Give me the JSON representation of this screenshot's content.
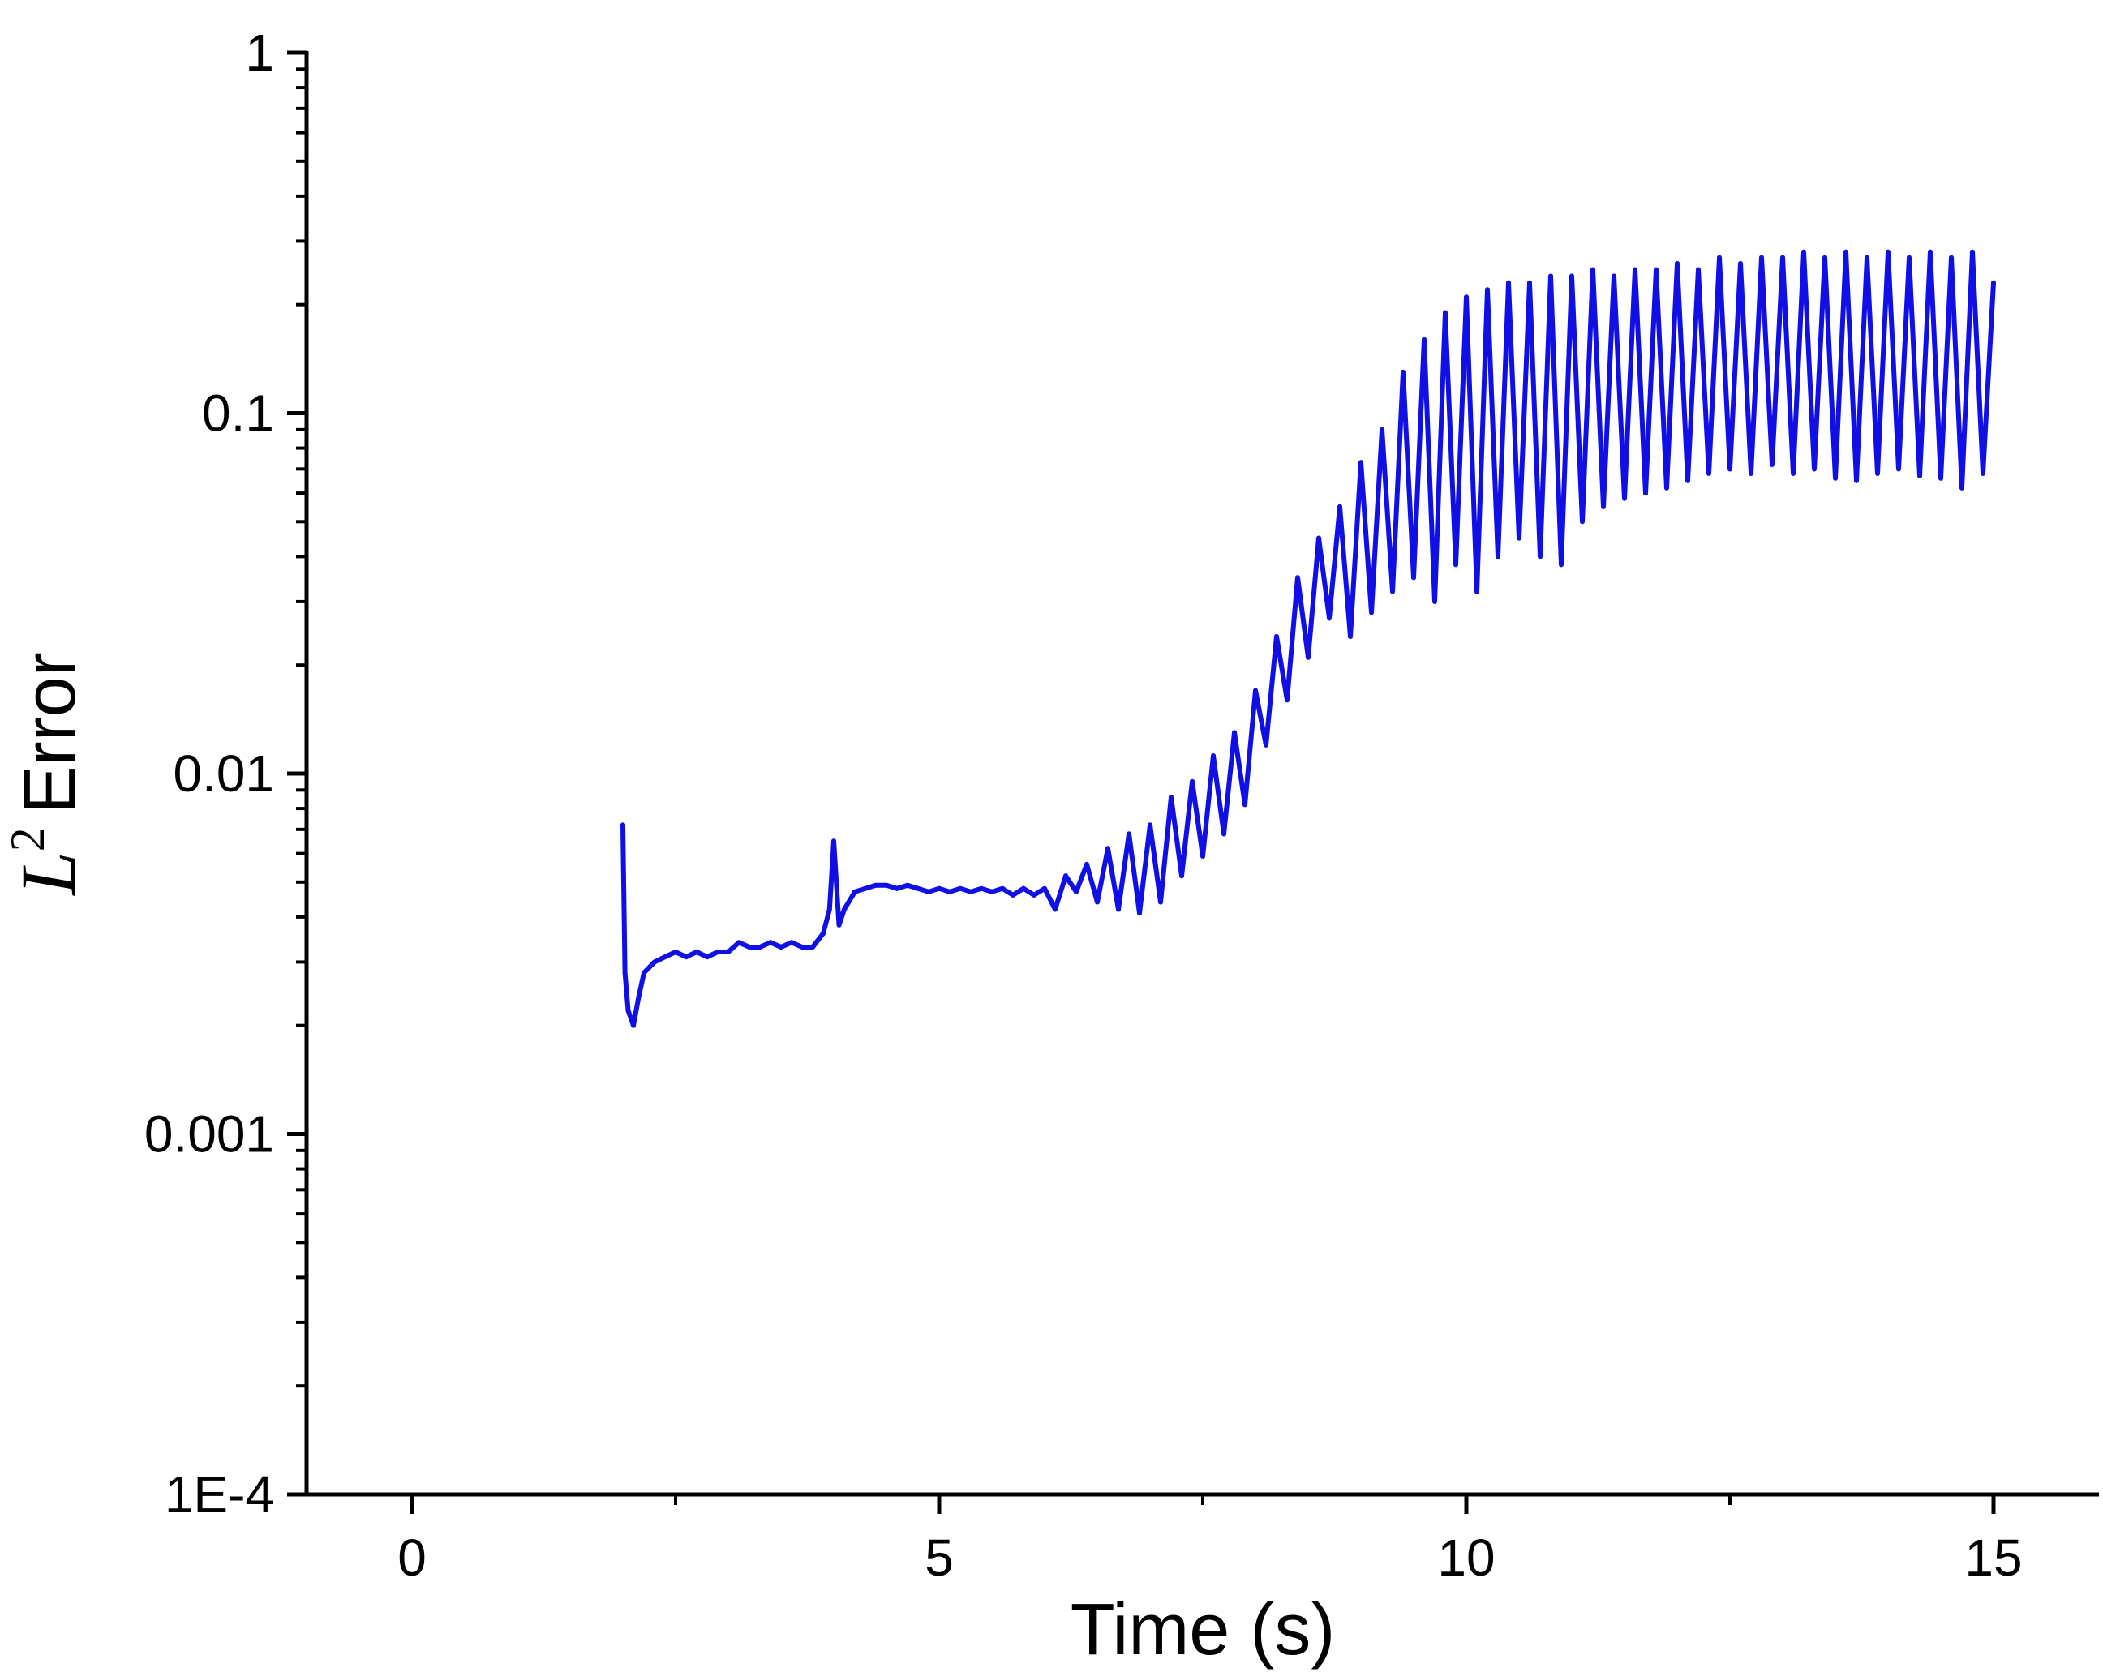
{
  "chart_data": {
    "type": "line",
    "xlabel": "Time (s)",
    "ylabel": {
      "base": "L",
      "superscript": "2",
      "text": "Error"
    },
    "xlim": [
      -1,
      16
    ],
    "ylim": [
      0.0001,
      1
    ],
    "yscale": "log",
    "x_ticks": [
      0,
      5,
      10,
      15
    ],
    "x_tick_labels": [
      "0",
      "5",
      "10",
      "15"
    ],
    "y_ticks": [
      0.0001,
      0.001,
      0.01,
      0.1,
      1
    ],
    "y_tick_labels": [
      "1E-4",
      "0.001",
      "0.01",
      "0.1",
      "1"
    ],
    "grid": false,
    "legend": "none",
    "series": [
      {
        "color": "#1010e6",
        "x": [
          2.0,
          2.02,
          2.05,
          2.1,
          2.15,
          2.2,
          2.3,
          2.4,
          2.5,
          2.6,
          2.7,
          2.8,
          2.9,
          3.0,
          3.1,
          3.2,
          3.3,
          3.4,
          3.5,
          3.6,
          3.7,
          3.8,
          3.9,
          3.96,
          4.0,
          4.05,
          4.1,
          4.2,
          4.3,
          4.4,
          4.5,
          4.6,
          4.7,
          4.8,
          4.9,
          5.0,
          5.1,
          5.2,
          5.3,
          5.4,
          5.5,
          5.6,
          5.7,
          5.8,
          5.9,
          6.0,
          6.1,
          6.2,
          6.3,
          6.4,
          6.5,
          6.6,
          6.7,
          6.8,
          6.9,
          7.0,
          7.1,
          7.2,
          7.3,
          7.4,
          7.5,
          7.6,
          7.7,
          7.8,
          7.9,
          8.0,
          8.1,
          8.2,
          8.3,
          8.4,
          8.5,
          8.6,
          8.7,
          8.8,
          8.9,
          9.0,
          9.1,
          9.2,
          9.3,
          9.4,
          9.5,
          9.6,
          9.7,
          9.8,
          9.9,
          10.0,
          10.1,
          10.2,
          10.3,
          10.4,
          10.5,
          10.6,
          10.7,
          10.8,
          10.9,
          11.0,
          11.1,
          11.2,
          11.3,
          11.4,
          11.5,
          11.6,
          11.7,
          11.8,
          11.9,
          12.0,
          12.1,
          12.2,
          12.3,
          12.4,
          12.5,
          12.6,
          12.7,
          12.8,
          12.9,
          13.0,
          13.1,
          13.2,
          13.3,
          13.4,
          13.5,
          13.6,
          13.7,
          13.8,
          13.9,
          14.0,
          14.1,
          14.2,
          14.3,
          14.4,
          14.5,
          14.6,
          14.7,
          14.8,
          14.9,
          15.0
        ],
        "y": [
          0.0072,
          0.0028,
          0.0022,
          0.002,
          0.0024,
          0.0028,
          0.003,
          0.0031,
          0.0032,
          0.0031,
          0.0032,
          0.0031,
          0.0032,
          0.0032,
          0.0034,
          0.0033,
          0.0033,
          0.0034,
          0.0033,
          0.0034,
          0.0033,
          0.0033,
          0.0036,
          0.0042,
          0.0065,
          0.0038,
          0.0042,
          0.0047,
          0.0048,
          0.0049,
          0.0049,
          0.0048,
          0.0049,
          0.0048,
          0.0047,
          0.0048,
          0.0047,
          0.0048,
          0.0047,
          0.0048,
          0.0047,
          0.0048,
          0.0046,
          0.0048,
          0.0046,
          0.0048,
          0.0042,
          0.0052,
          0.0047,
          0.0056,
          0.0044,
          0.0062,
          0.0042,
          0.0068,
          0.0041,
          0.0072,
          0.0044,
          0.0086,
          0.0052,
          0.0095,
          0.0059,
          0.0112,
          0.0068,
          0.013,
          0.0082,
          0.017,
          0.012,
          0.024,
          0.016,
          0.035,
          0.021,
          0.045,
          0.027,
          0.055,
          0.024,
          0.073,
          0.028,
          0.09,
          0.032,
          0.13,
          0.035,
          0.16,
          0.03,
          0.19,
          0.038,
          0.21,
          0.032,
          0.22,
          0.04,
          0.23,
          0.045,
          0.23,
          0.04,
          0.24,
          0.038,
          0.24,
          0.05,
          0.25,
          0.055,
          0.24,
          0.058,
          0.25,
          0.06,
          0.25,
          0.062,
          0.26,
          0.065,
          0.25,
          0.068,
          0.27,
          0.07,
          0.26,
          0.068,
          0.27,
          0.072,
          0.27,
          0.068,
          0.28,
          0.07,
          0.27,
          0.066,
          0.28,
          0.065,
          0.27,
          0.068,
          0.28,
          0.07,
          0.27,
          0.067,
          0.28,
          0.066,
          0.27,
          0.062,
          0.28,
          0.068,
          0.23
        ]
      }
    ]
  }
}
